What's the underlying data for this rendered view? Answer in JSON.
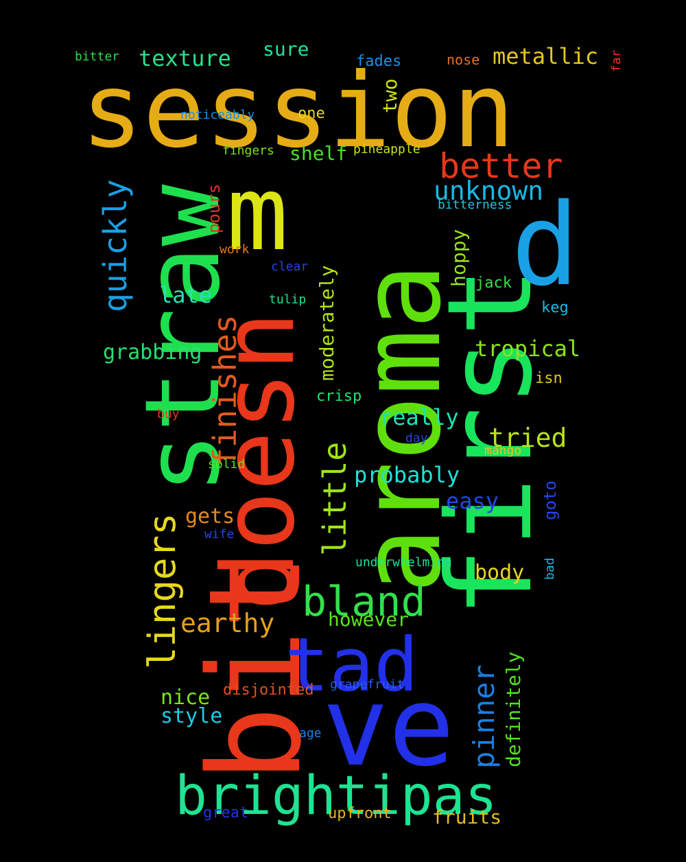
{
  "words": [
    {
      "text": "session",
      "color": "#E6AC16",
      "vertical": false
    },
    {
      "text": "aroma",
      "color": "#5FE00C",
      "vertical": true
    },
    {
      "text": "first",
      "color": "#18E45C",
      "vertical": true
    },
    {
      "text": "bit",
      "color": "#E8371A",
      "vertical": true
    },
    {
      "text": "ve",
      "color": "#2230E8",
      "vertical": false
    },
    {
      "text": "straw",
      "color": "#1EE04E",
      "vertical": true
    },
    {
      "text": "doesn",
      "color": "#E8371A",
      "vertical": true
    },
    {
      "text": "m",
      "color": "#DCE515",
      "vertical": false
    },
    {
      "text": "d",
      "color": "#1AA0E4",
      "vertical": false
    },
    {
      "text": "tad",
      "color": "#2230E8",
      "vertical": false
    },
    {
      "text": "brightipas",
      "color": "#1FE292",
      "vertical": false
    },
    {
      "text": "bland",
      "color": "#32E04A",
      "vertical": false
    },
    {
      "text": "lingers",
      "color": "#E6D81E",
      "vertical": true
    },
    {
      "text": "finishes",
      "color": "#E25A1E",
      "vertical": true
    },
    {
      "text": "quickly",
      "color": "#1AA0E4",
      "vertical": true
    },
    {
      "text": "better",
      "color": "#E8371A",
      "vertical": false
    },
    {
      "text": "unknown",
      "color": "#1AB8E4",
      "vertical": false
    },
    {
      "text": "little",
      "color": "#A0E41A",
      "vertical": true
    },
    {
      "text": "pinner",
      "color": "#1A80E4",
      "vertical": true
    },
    {
      "text": "earthy",
      "color": "#E6A01E",
      "vertical": false
    },
    {
      "text": "tried",
      "color": "#B8E41A",
      "vertical": false
    },
    {
      "text": "texture",
      "color": "#28E08C",
      "vertical": false
    },
    {
      "text": "metallic",
      "color": "#E6C81E",
      "vertical": false
    },
    {
      "text": "tropical",
      "color": "#8CE41A",
      "vertical": false
    },
    {
      "text": "definitely",
      "color": "#50E41A",
      "vertical": true
    },
    {
      "text": "moderately",
      "color": "#B4E41A",
      "vertical": true
    },
    {
      "text": "really",
      "color": "#1AE4B8",
      "vertical": false
    },
    {
      "text": "probably",
      "color": "#1AE4D8",
      "vertical": false
    },
    {
      "text": "easy",
      "color": "#2446E8",
      "vertical": false
    },
    {
      "text": "late",
      "color": "#28E0B4",
      "vertical": false
    },
    {
      "text": "grabbing",
      "color": "#28E070",
      "vertical": false
    },
    {
      "text": "shelf",
      "color": "#48E41A",
      "vertical": false
    },
    {
      "text": "sure",
      "color": "#1AE4A0",
      "vertical": false
    },
    {
      "text": "gets",
      "color": "#E68A1E",
      "vertical": false
    },
    {
      "text": "body",
      "color": "#E6D81E",
      "vertical": false
    },
    {
      "text": "however",
      "color": "#5AE41A",
      "vertical": false
    },
    {
      "text": "nice",
      "color": "#7CE41A",
      "vertical": false
    },
    {
      "text": "style",
      "color": "#1ACCE4",
      "vertical": false
    },
    {
      "text": "disjointed",
      "color": "#E6501E",
      "vertical": false
    },
    {
      "text": "fruits",
      "color": "#E6BC1E",
      "vertical": false
    },
    {
      "text": "hoppy",
      "color": "#9CE41A",
      "vertical": true
    },
    {
      "text": "two",
      "color": "#D4E41A",
      "vertical": true
    },
    {
      "text": "pours",
      "color": "#E6321E",
      "vertical": true
    },
    {
      "text": "goto",
      "color": "#2446E8",
      "vertical": true
    },
    {
      "text": "fades",
      "color": "#1A90E4",
      "vertical": false
    },
    {
      "text": "one",
      "color": "#E6D81E",
      "vertical": false
    },
    {
      "text": "upfront",
      "color": "#E6B41E",
      "vertical": false
    },
    {
      "text": "great",
      "color": "#2432E8",
      "vertical": false
    },
    {
      "text": "crisp",
      "color": "#1AE470",
      "vertical": false
    },
    {
      "text": "jack",
      "color": "#32E04A",
      "vertical": false
    },
    {
      "text": "keg",
      "color": "#1AB8E4",
      "vertical": false
    },
    {
      "text": "isn",
      "color": "#E6C81E",
      "vertical": false
    },
    {
      "text": "nose",
      "color": "#E6701E",
      "vertical": false
    },
    {
      "text": "far",
      "color": "#E6321E",
      "vertical": true
    },
    {
      "text": "bitter",
      "color": "#28E04A",
      "vertical": false
    },
    {
      "text": "noticeably",
      "color": "#1A90E4",
      "vertical": false
    },
    {
      "text": "fingers",
      "color": "#7CE41A",
      "vertical": false
    },
    {
      "text": "pineapple",
      "color": "#C8E41A",
      "vertical": false
    },
    {
      "text": "bitterness",
      "color": "#1AC8E4",
      "vertical": false
    },
    {
      "text": "work",
      "color": "#E6781E",
      "vertical": false
    },
    {
      "text": "clear",
      "color": "#2446E8",
      "vertical": false
    },
    {
      "text": "tulip",
      "color": "#1AE48C",
      "vertical": false
    },
    {
      "text": "buy",
      "color": "#E6321E",
      "vertical": false
    },
    {
      "text": "day",
      "color": "#2446E8",
      "vertical": false
    },
    {
      "text": "mango",
      "color": "#E6C81E",
      "vertical": false
    },
    {
      "text": "solid",
      "color": "#5AE41A",
      "vertical": false
    },
    {
      "text": "wife",
      "color": "#2446E8",
      "vertical": false
    },
    {
      "text": "underwhelming",
      "color": "#1AE4A0",
      "vertical": false
    },
    {
      "text": "bad",
      "color": "#1AB8E4",
      "vertical": true
    },
    {
      "text": "grapefruit",
      "color": "#2460E8",
      "vertical": false
    },
    {
      "text": "age",
      "color": "#1A80E4",
      "vertical": false
    }
  ]
}
